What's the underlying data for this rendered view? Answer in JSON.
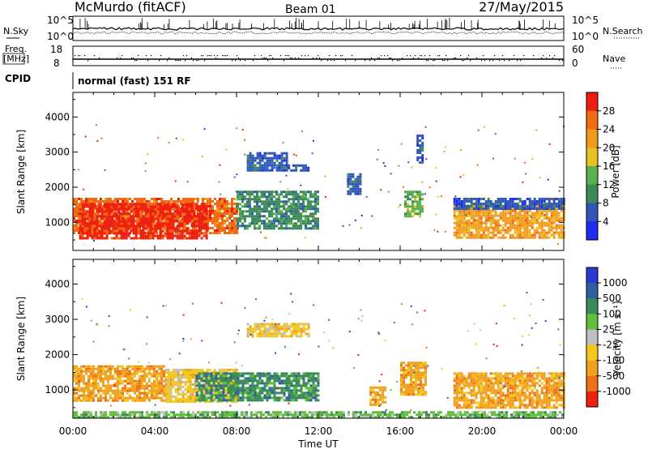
{
  "header": {
    "station": "McMurdo (fitACF)",
    "beam": "Beam 01",
    "date": "27/May/2015"
  },
  "top_panels": {
    "nsky_label": "N.Sky",
    "nsearch_label": "N.Search",
    "freq_label_1": "Freq.",
    "freq_label_2": "[MHz]",
    "nave_label": "Nave",
    "cpid_label": "CPID",
    "mode_text": "normal (fast) 151 RF",
    "noise_left_ticks": [
      "10^5",
      "10^0"
    ],
    "noise_right_ticks": [
      "10^5",
      "10^0"
    ],
    "freq_left_ticks": [
      "18",
      "8"
    ],
    "nave_right_ticks": [
      "60",
      "0"
    ]
  },
  "chart_data": [
    {
      "type": "heatmap",
      "name": "Power",
      "ylabel": "Slant Range [km]",
      "xlabel": "",
      "yticks": [
        "1000",
        "2000",
        "3000",
        "4000"
      ],
      "ylim": [
        200,
        4700
      ],
      "colorbar_label": "Power [dB]",
      "colorbar_ticks": [
        "4",
        "8",
        "12",
        "16",
        "20",
        "24",
        "28"
      ],
      "colors": [
        "#1f2cf0",
        "#2f56b8",
        "#3a8a5a",
        "#58b04e",
        "#e8c020",
        "#f29a1c",
        "#f26a12",
        "#ee1f10"
      ],
      "regions": [
        {
          "t": [
            0.0,
            8.0
          ],
          "r": [
            700,
            1700
          ],
          "v": 26
        },
        {
          "t": [
            0.3,
            6.5
          ],
          "r": [
            550,
            1550
          ],
          "v": 30
        },
        {
          "t": [
            8.0,
            12.0
          ],
          "r": [
            800,
            1900
          ],
          "v": 10
        },
        {
          "t": [
            8.5,
            10.5
          ],
          "r": [
            2500,
            3000
          ],
          "v": 8
        },
        {
          "t": [
            10.5,
            11.5
          ],
          "r": [
            2500,
            2650
          ],
          "v": 6
        },
        {
          "t": [
            13.4,
            14.1
          ],
          "r": [
            1800,
            2400
          ],
          "v": 6
        },
        {
          "t": [
            16.2,
            17.1
          ],
          "r": [
            1200,
            1900
          ],
          "v": 14
        },
        {
          "t": [
            16.8,
            17.1
          ],
          "r": [
            2700,
            3500
          ],
          "v": 6
        },
        {
          "t": [
            18.6,
            24.0
          ],
          "r": [
            550,
            1500
          ],
          "v": 22
        },
        {
          "t": [
            18.6,
            24.0
          ],
          "r": [
            1400,
            1700
          ],
          "v": 8
        }
      ]
    },
    {
      "type": "heatmap",
      "name": "Velocity",
      "ylabel": "Slant Range [km]",
      "xlabel": "Time UT",
      "yticks": [
        "1000",
        "2000",
        "3000",
        "4000"
      ],
      "ylim": [
        200,
        4700
      ],
      "xticks": [
        "00:00",
        "04:00",
        "08:00",
        "12:00",
        "16:00",
        "20:00",
        "00:00"
      ],
      "xlim": [
        0,
        24
      ],
      "colorbar_label": "Velocity [m s⁻¹]",
      "colorbar_ticks": [
        "1000",
        "500",
        "100",
        "25",
        "-25",
        "-100",
        "-500",
        "-1000"
      ],
      "colors": [
        "#2a3ad0",
        "#2f5fa0",
        "#3a8a5a",
        "#5fbf3a",
        "#bfbfbf",
        "#f2c81c",
        "#f0a01c",
        "#f07018",
        "#ee2010"
      ],
      "regions": [
        {
          "t": [
            0.0,
            4.5
          ],
          "r": [
            700,
            1700
          ],
          "v": -150
        },
        {
          "t": [
            4.5,
            8.0
          ],
          "r": [
            700,
            1600
          ],
          "v": -80
        },
        {
          "t": [
            6.0,
            12.0
          ],
          "r": [
            700,
            1500
          ],
          "v": 150
        },
        {
          "t": [
            8.5,
            11.5
          ],
          "r": [
            2500,
            2900
          ],
          "v": -50
        },
        {
          "t": [
            14.5,
            15.3
          ],
          "r": [
            600,
            1100
          ],
          "v": -200
        },
        {
          "t": [
            16.0,
            17.2
          ],
          "r": [
            900,
            1800
          ],
          "v": -200
        },
        {
          "t": [
            18.6,
            24.0
          ],
          "r": [
            500,
            1500
          ],
          "v": -180
        },
        {
          "t": [
            0.0,
            24.0
          ],
          "r": [
            200,
            400
          ],
          "v": 60
        }
      ]
    }
  ]
}
